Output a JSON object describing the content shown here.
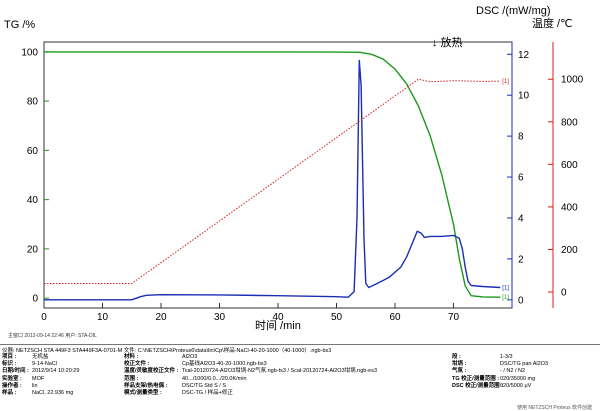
{
  "titles": {
    "tg_axis": "TG /%",
    "dsc_axis": "DSC /(mW/mg)",
    "temp_axis": "温度 /℃",
    "exo": "↓ 放热",
    "x_axis": "时间 /min"
  },
  "footer_left": "主窗口   2012-09-14 22:46    用户: STA-DIL",
  "watermark": "使用 NETZSCH Proteus 软件创建",
  "info": {
    "header": "仪器: NETZSCH STA 449F3 STA449F3A-0701-M    文件: C:\\NETZSCH\\Proteus6\\data\\lin\\Cp\\样品-NaCl-40-20-1000（40-1000）.ngb-bs3",
    "col1": [
      {
        "k": "项目 :",
        "v": "无机盐"
      },
      {
        "k": "标识 :",
        "v": "9-14-NaCl"
      },
      {
        "k": "日期/时间 :",
        "v": "2012/9/14 10:20:29"
      },
      {
        "k": "实验室 :",
        "v": "MOF"
      },
      {
        "k": "操作者 :",
        "v": "lin"
      },
      {
        "k": "样品 :",
        "v": "NaCl, 22.936 mg"
      }
    ],
    "col2": [
      {
        "k": "材料 :",
        "v": "Al2O3"
      },
      {
        "k": "校正文件 :",
        "v": "Cp基线Al2O3-40-20-1000.ngb-bs3"
      },
      {
        "k": "温度/灵敏度校正文件 :",
        "v": "Tcal-20120724-Al2O3坩埚-N2气氛.ngb-ts3 / Scal-20120724-Al2O3坩埚.ngb-es3"
      },
      {
        "k": "范围 :",
        "v": "40.../1000/0.0.../20.0K/min"
      },
      {
        "k": "样品支架/热电偶 :",
        "v": "DSC/TG Std S / S"
      },
      {
        "k": "模式/测量类型 :",
        "v": "DSC-TG / 样品+修正"
      }
    ],
    "col3": [
      {
        "k": "段 :",
        "v": "1-3/3"
      },
      {
        "k": "坩埚 :",
        "v": "DSC/TG pan Al2O3"
      },
      {
        "k": "气氛 :",
        "v": "- / N2 / N2"
      },
      {
        "k": "TG 校正/测量范围 :",
        "v": "020/35000 mg"
      },
      {
        "k": "DSC 校正/测量范围 :",
        "v": "020/5000 μV"
      }
    ]
  },
  "chart_data": {
    "type": "line",
    "x_label": "时间 /min",
    "x_range": [
      0,
      80
    ],
    "x_ticks": [
      0,
      10,
      20,
      30,
      40,
      50,
      60,
      70
    ],
    "axes": {
      "tg": {
        "label": "TG /%",
        "range": [
          -4,
          104
        ],
        "ticks": [
          0,
          20,
          40,
          60,
          80,
          100
        ]
      },
      "dsc": {
        "label": "DSC /(mW/mg)",
        "range": [
          -0.4,
          12.6
        ],
        "ticks": [
          0,
          2,
          4,
          6,
          8,
          10,
          12
        ]
      },
      "temp": {
        "label": "温度 /℃",
        "range": [
          -75,
          1175
        ],
        "ticks": [
          0,
          200,
          400,
          600,
          800,
          1000
        ]
      }
    },
    "series": [
      {
        "key": "tg",
        "axis": "tg",
        "color": "#1a9a1a",
        "style": "solid",
        "end_tag": "[1]",
        "points": [
          [
            0,
            100
          ],
          [
            10,
            100
          ],
          [
            20,
            100
          ],
          [
            30,
            100
          ],
          [
            40,
            100
          ],
          [
            50,
            99.9
          ],
          [
            54,
            99.8
          ],
          [
            56,
            99
          ],
          [
            58,
            97
          ],
          [
            60,
            93
          ],
          [
            62,
            87
          ],
          [
            64,
            78
          ],
          [
            66,
            66
          ],
          [
            68,
            50
          ],
          [
            70,
            30
          ],
          [
            71,
            16
          ],
          [
            72,
            5
          ],
          [
            73,
            1
          ],
          [
            75,
            0.5
          ],
          [
            78,
            0.4
          ]
        ]
      },
      {
        "key": "dsc",
        "axis": "dsc",
        "color": "#1a2fb5",
        "style": "solid",
        "end_tag": "[1]",
        "points": [
          [
            0,
            0
          ],
          [
            10,
            0
          ],
          [
            15,
            0
          ],
          [
            16.5,
            0.15
          ],
          [
            17.5,
            0.22
          ],
          [
            20,
            0.25
          ],
          [
            30,
            0.24
          ],
          [
            40,
            0.2
          ],
          [
            50,
            0.15
          ],
          [
            52,
            0.13
          ],
          [
            53,
            0.4
          ],
          [
            53.5,
            4
          ],
          [
            53.9,
            11.7
          ],
          [
            54.2,
            10.5
          ],
          [
            54.7,
            3
          ],
          [
            55,
            0.8
          ],
          [
            55.5,
            0.6
          ],
          [
            57,
            0.8
          ],
          [
            59,
            1.1
          ],
          [
            61,
            1.6
          ],
          [
            62,
            2.1
          ],
          [
            63,
            2.8
          ],
          [
            63.8,
            3.35
          ],
          [
            64.5,
            3.25
          ],
          [
            65,
            3.05
          ],
          [
            66,
            3.1
          ],
          [
            68,
            3.1
          ],
          [
            70,
            3.15
          ],
          [
            71,
            3.0
          ],
          [
            71.5,
            2.5
          ],
          [
            72,
            1.6
          ],
          [
            72.5,
            0.9
          ],
          [
            73,
            0.7
          ],
          [
            75,
            0.65
          ],
          [
            78,
            0.6
          ]
        ]
      },
      {
        "key": "temp",
        "axis": "temp",
        "color": "#d81d1d",
        "style": "dotted",
        "end_tag": "[1]",
        "points": [
          [
            0,
            40
          ],
          [
            15,
            40
          ],
          [
            64,
            1000
          ],
          [
            66,
            988
          ],
          [
            70,
            993
          ],
          [
            75,
            990
          ],
          [
            78,
            991
          ]
        ]
      }
    ]
  }
}
